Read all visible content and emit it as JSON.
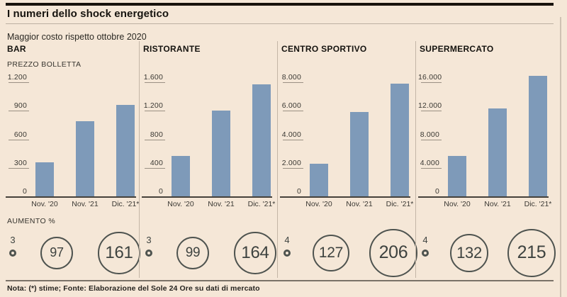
{
  "header": {
    "title": "I numeri dello shock energetico",
    "subtitle": "Maggior costo rispetto ottobre 2020"
  },
  "labels": {
    "y_axis_caption": "PREZZO BOLLETTA",
    "increase_caption": "AUMENTO %"
  },
  "footer": {
    "note": "Nota: (*) stime; Fonte: Elaborazione del Sole 24 Ore su dati di mercato"
  },
  "colors": {
    "background": "#f5e7d7",
    "bar": "#7e9ab9",
    "circle_stroke": "#4e534f",
    "baseline": "#45413a",
    "top_rule": "#18120c"
  },
  "chart_data": [
    {
      "type": "bar",
      "title": "BAR",
      "categories": [
        "Nov. '20",
        "Nov. '21",
        "Dic. '21*"
      ],
      "values": [
        360,
        790,
        960
      ],
      "ymax": 1200,
      "y_ticks": [
        "1.200",
        "900",
        "600",
        "300",
        "0"
      ],
      "increase_pct": [
        3,
        97,
        161
      ]
    },
    {
      "type": "bar",
      "title": "RISTORANTE",
      "categories": [
        "Nov. '20",
        "Nov. '21",
        "Dic. '21*"
      ],
      "values": [
        570,
        1200,
        1570
      ],
      "ymax": 1600,
      "y_ticks": [
        "1.600",
        "1.200",
        "800",
        "400",
        "0"
      ],
      "increase_pct": [
        3,
        99,
        164
      ]
    },
    {
      "type": "bar",
      "title": "CENTRO SPORTIVO",
      "categories": [
        "Nov. '20",
        "Nov. '21",
        "Dic. '21*"
      ],
      "values": [
        2300,
        5900,
        7900
      ],
      "ymax": 8000,
      "y_ticks": [
        "8.000",
        "6.000",
        "4.000",
        "2.000",
        "0"
      ],
      "increase_pct": [
        4,
        127,
        206
      ]
    },
    {
      "type": "bar",
      "title": "SUPERMERCATO",
      "categories": [
        "Nov. '20",
        "Nov. '21",
        "Dic. '21*"
      ],
      "values": [
        5700,
        12300,
        16900
      ],
      "ymax": 16000,
      "y_ticks": [
        "16.000",
        "12.000",
        "8.000",
        "4.000",
        "0"
      ],
      "increase_pct": [
        4,
        132,
        215
      ]
    }
  ]
}
